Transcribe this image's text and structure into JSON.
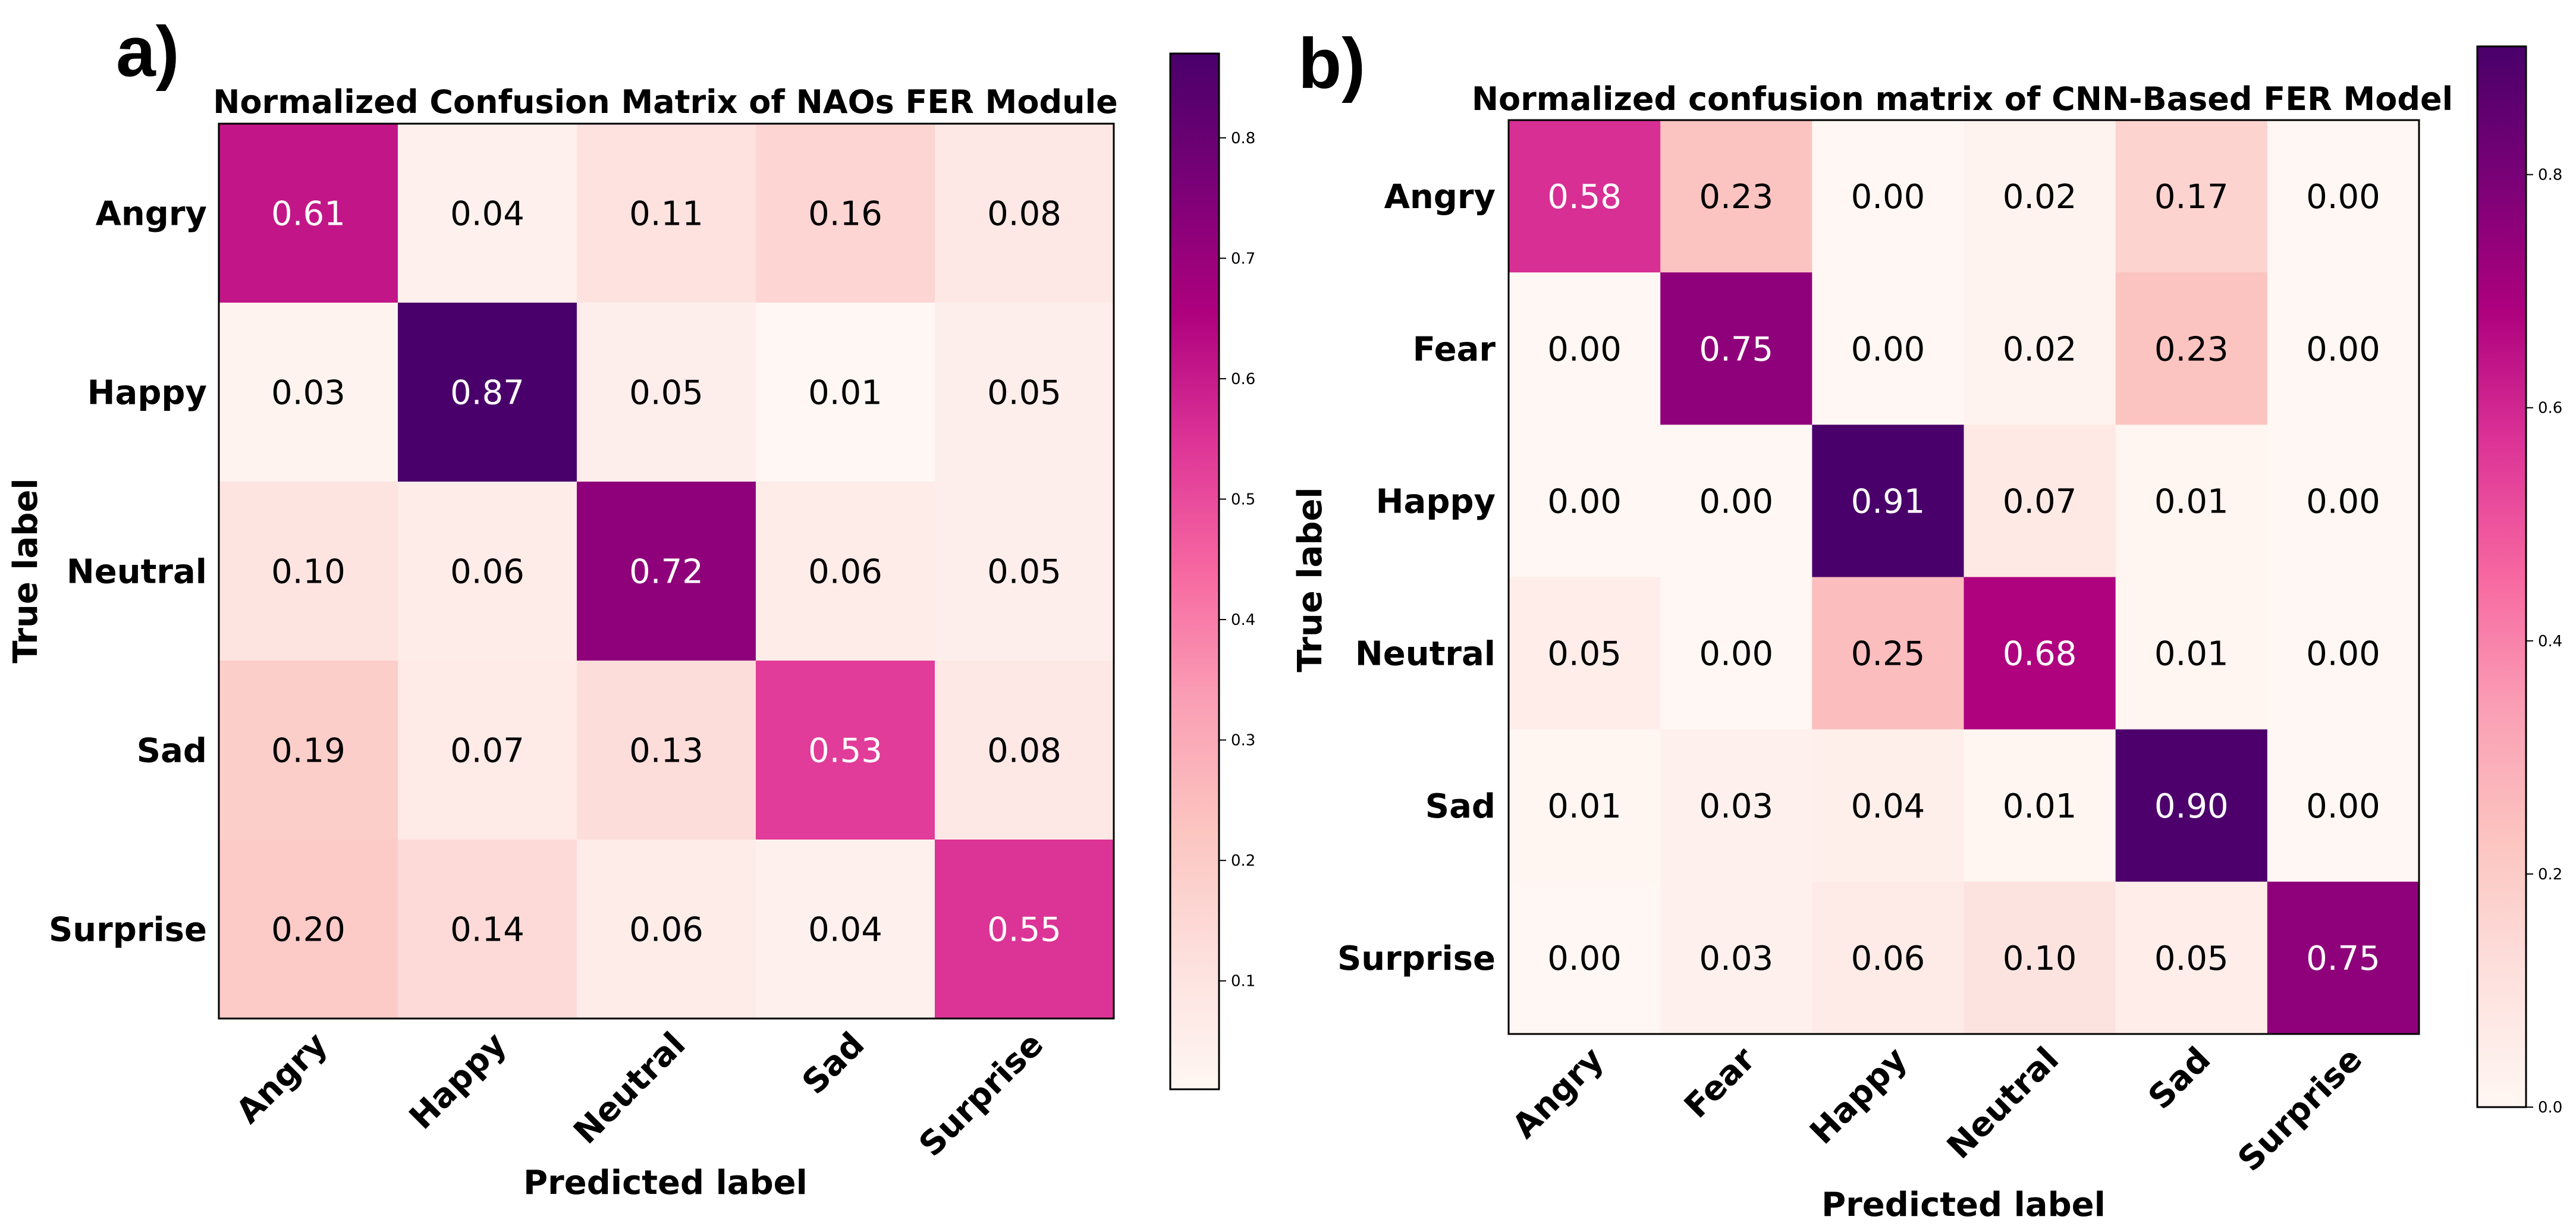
{
  "chart_data": [
    {
      "type": "heatmap",
      "panel_label": "a)",
      "title": "Normalized Confusion Matrix of NAOs FER Module",
      "xlabel": "Predicted label",
      "ylabel": "True label",
      "x_categories": [
        "Angry",
        "Happy",
        "Neutral",
        "Sad",
        "Surprise"
      ],
      "y_categories": [
        "Angry",
        "Happy",
        "Neutral",
        "Sad",
        "Surprise"
      ],
      "values": [
        [
          0.61,
          0.04,
          0.11,
          0.16,
          0.08
        ],
        [
          0.03,
          0.87,
          0.05,
          0.01,
          0.05
        ],
        [
          0.1,
          0.06,
          0.72,
          0.06,
          0.05
        ],
        [
          0.19,
          0.07,
          0.13,
          0.53,
          0.08
        ],
        [
          0.2,
          0.14,
          0.06,
          0.04,
          0.55
        ]
      ],
      "colorbar": {
        "colormap": "RdPu",
        "range": [
          0.01,
          0.87
        ],
        "ticks": [
          0.1,
          0.2,
          0.3,
          0.4,
          0.5,
          0.6,
          0.7,
          0.8
        ],
        "tick_labels": [
          "0.1",
          "0.2",
          "0.3",
          "0.4",
          "0.5",
          "0.6",
          "0.7",
          "0.8"
        ]
      }
    },
    {
      "type": "heatmap",
      "panel_label": "b)",
      "title": "Normalized confusion matrix of CNN-Based FER Model",
      "xlabel": "Predicted label",
      "ylabel": "True label",
      "x_categories": [
        "Angry",
        "Fear",
        "Happy",
        "Neutral",
        "Sad",
        "Surprise"
      ],
      "y_categories": [
        "Angry",
        "Fear",
        "Happy",
        "Neutral",
        "Sad",
        "Surprise"
      ],
      "values": [
        [
          0.58,
          0.23,
          0.0,
          0.02,
          0.17,
          0.0
        ],
        [
          0.0,
          0.75,
          0.0,
          0.02,
          0.23,
          0.0
        ],
        [
          0.0,
          0.0,
          0.91,
          0.07,
          0.01,
          0.0
        ],
        [
          0.05,
          0.0,
          0.25,
          0.68,
          0.01,
          0.0
        ],
        [
          0.01,
          0.03,
          0.04,
          0.01,
          0.9,
          0.0
        ],
        [
          0.0,
          0.03,
          0.06,
          0.1,
          0.05,
          0.75
        ]
      ],
      "colorbar": {
        "colormap": "RdPu",
        "range": [
          0.0,
          0.91
        ],
        "ticks": [
          0.0,
          0.2,
          0.4,
          0.6,
          0.8
        ],
        "tick_labels": [
          "0.0",
          "0.2",
          "0.4",
          "0.6",
          "0.8"
        ]
      }
    }
  ]
}
